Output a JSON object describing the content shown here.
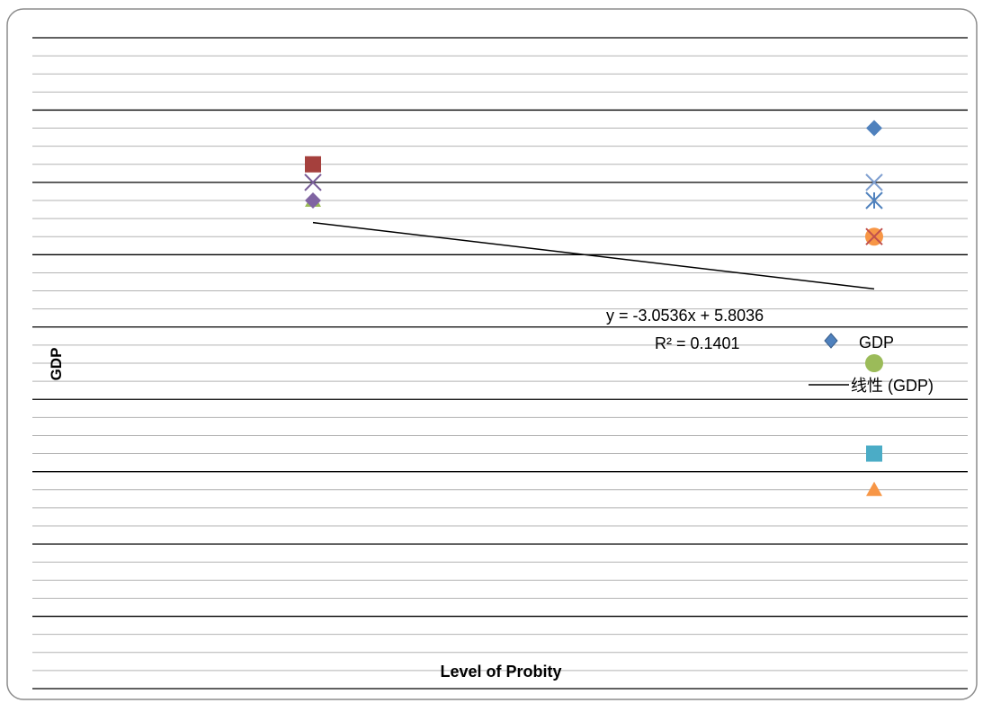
{
  "chart_data": {
    "type": "scatter",
    "title": "",
    "xlabel": "Level of Probity",
    "ylabel": "GDP",
    "grid": true,
    "legend_position": "right",
    "legend": [
      {
        "label": "GDP",
        "marker": "diamond",
        "color": "#4f81bd"
      },
      {
        "label": "线性 (GDP)",
        "marker": "line",
        "color": "#000000"
      }
    ],
    "trendline": {
      "equation": "y = -3.0536x + 5.8036",
      "r_squared": "R² = 0.1401",
      "slope": -3.0536,
      "intercept": 5.8036
    },
    "points": [
      {
        "x": 0.3,
        "y": 5.5,
        "marker": "triangle",
        "color": "#9bbb59"
      },
      {
        "x": 0.3,
        "y": 6.5,
        "marker": "square",
        "color": "#a5403d"
      },
      {
        "x": 0.3,
        "y": 6.0,
        "marker": "x",
        "color": "#7a5f9a"
      },
      {
        "x": 0.3,
        "y": 5.5,
        "marker": "diamond",
        "color": "#8064a2"
      },
      {
        "x": 0.9,
        "y": 7.5,
        "marker": "diamond",
        "color": "#4f81bd"
      },
      {
        "x": 0.9,
        "y": 6.0,
        "marker": "x",
        "color": "#7f9fd0"
      },
      {
        "x": 0.9,
        "y": 5.5,
        "marker": "asterisk",
        "color": "#4f81bd"
      },
      {
        "x": 0.9,
        "y": 4.5,
        "marker": "circle",
        "color": "#f79646"
      },
      {
        "x": 0.9,
        "y": 4.5,
        "marker": "x",
        "color": "#c0504d"
      },
      {
        "x": 0.9,
        "y": 1.0,
        "marker": "circle",
        "color": "#9bbb59"
      },
      {
        "x": 0.9,
        "y": -1.5,
        "marker": "square",
        "color": "#4bacc6"
      },
      {
        "x": 0.9,
        "y": -2.5,
        "marker": "triangle",
        "color": "#f79646"
      }
    ]
  }
}
